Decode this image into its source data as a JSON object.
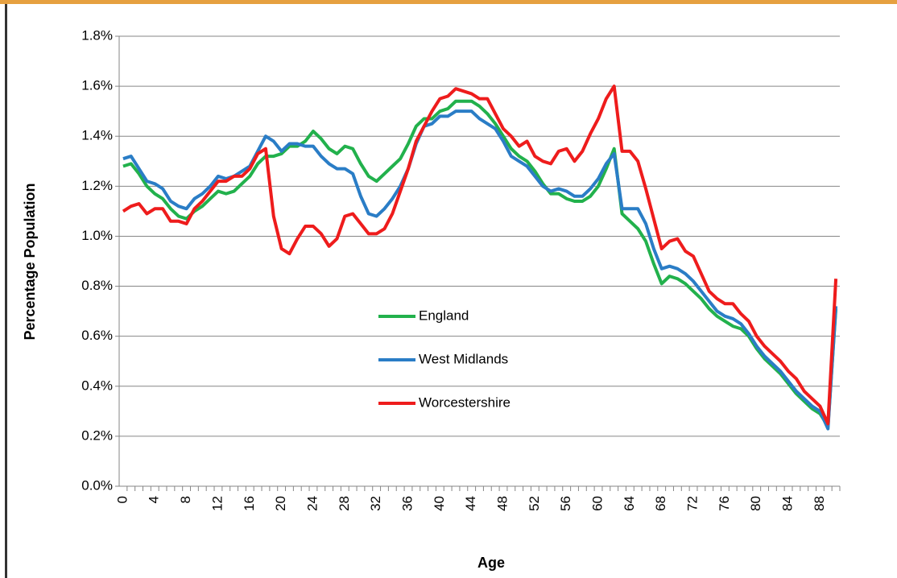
{
  "chart_data": {
    "type": "line",
    "x_label": "Age",
    "y_label": "Percentage Population",
    "categories": [
      "0",
      null,
      null,
      null,
      "4",
      null,
      null,
      null,
      "8",
      null,
      null,
      null,
      "12",
      null,
      null,
      null,
      "16",
      null,
      null,
      null,
      "20",
      null,
      null,
      null,
      "24",
      null,
      null,
      null,
      "28",
      null,
      null,
      null,
      "32",
      null,
      null,
      null,
      "36",
      null,
      null,
      null,
      "40",
      null,
      null,
      null,
      "44",
      null,
      null,
      null,
      "48",
      null,
      null,
      null,
      "52",
      null,
      null,
      null,
      "56",
      null,
      null,
      null,
      "60",
      null,
      null,
      null,
      "64",
      null,
      null,
      null,
      "68",
      null,
      null,
      null,
      "72",
      null,
      null,
      null,
      "76",
      null,
      null,
      null,
      "80",
      null,
      null,
      null,
      "84",
      null,
      null,
      null,
      "88",
      null,
      null
    ],
    "ylim": [
      0,
      1.8
    ],
    "yticks": [
      {
        "value": 0,
        "label": "0.0%"
      },
      {
        "value": 0.2,
        "label": "0.2%"
      },
      {
        "value": 0.4,
        "label": "0.4%"
      },
      {
        "value": 0.6,
        "label": "0.6%"
      },
      {
        "value": 0.8,
        "label": "0.8%"
      },
      {
        "value": 1.0,
        "label": "1.0%"
      },
      {
        "value": 1.2,
        "label": "1.2%"
      },
      {
        "value": 1.4,
        "label": "1.4%"
      },
      {
        "value": 1.6,
        "label": "1.6%"
      },
      {
        "value": 1.8,
        "label": "1.8%"
      }
    ],
    "grid": true,
    "legend": true,
    "series": [
      {
        "name": "England",
        "color": "#22b14c",
        "values": [
          1.28,
          1.29,
          1.25,
          1.2,
          1.17,
          1.15,
          1.11,
          1.08,
          1.07,
          1.1,
          1.12,
          1.15,
          1.18,
          1.17,
          1.18,
          1.21,
          1.24,
          1.29,
          1.32,
          1.32,
          1.33,
          1.36,
          1.36,
          1.38,
          1.42,
          1.39,
          1.35,
          1.33,
          1.36,
          1.35,
          1.29,
          1.24,
          1.22,
          1.25,
          1.28,
          1.31,
          1.37,
          1.44,
          1.47,
          1.47,
          1.5,
          1.51,
          1.54,
          1.54,
          1.54,
          1.52,
          1.49,
          1.45,
          1.4,
          1.35,
          1.32,
          1.3,
          1.26,
          1.21,
          1.17,
          1.17,
          1.15,
          1.14,
          1.14,
          1.16,
          1.2,
          1.27,
          1.35,
          1.09,
          1.06,
          1.03,
          0.98,
          0.89,
          0.81,
          0.84,
          0.83,
          0.81,
          0.78,
          0.75,
          0.71,
          0.68,
          0.66,
          0.64,
          0.63,
          0.6,
          0.55,
          0.51,
          0.48,
          0.45,
          0.41,
          0.37,
          0.34,
          0.31,
          0.29,
          0.24,
          0.71
        ]
      },
      {
        "name": "West Midlands",
        "color": "#2a7dc6",
        "values": [
          1.31,
          1.32,
          1.27,
          1.22,
          1.21,
          1.19,
          1.14,
          1.12,
          1.11,
          1.15,
          1.17,
          1.2,
          1.24,
          1.23,
          1.24,
          1.26,
          1.28,
          1.34,
          1.4,
          1.38,
          1.34,
          1.37,
          1.37,
          1.36,
          1.36,
          1.32,
          1.29,
          1.27,
          1.27,
          1.25,
          1.16,
          1.09,
          1.08,
          1.11,
          1.15,
          1.2,
          1.27,
          1.37,
          1.44,
          1.45,
          1.48,
          1.48,
          1.5,
          1.5,
          1.5,
          1.47,
          1.45,
          1.43,
          1.38,
          1.32,
          1.3,
          1.28,
          1.24,
          1.2,
          1.18,
          1.19,
          1.18,
          1.16,
          1.16,
          1.19,
          1.23,
          1.29,
          1.33,
          1.11,
          1.11,
          1.11,
          1.05,
          0.95,
          0.87,
          0.88,
          0.87,
          0.85,
          0.82,
          0.78,
          0.74,
          0.7,
          0.68,
          0.67,
          0.65,
          0.61,
          0.56,
          0.52,
          0.49,
          0.46,
          0.42,
          0.38,
          0.35,
          0.32,
          0.3,
          0.23,
          0.72
        ]
      },
      {
        "name": "Worcestershire",
        "color": "#ee1c1c",
        "values": [
          1.1,
          1.12,
          1.13,
          1.09,
          1.11,
          1.11,
          1.06,
          1.06,
          1.05,
          1.11,
          1.14,
          1.18,
          1.22,
          1.22,
          1.24,
          1.24,
          1.27,
          1.33,
          1.35,
          1.08,
          0.95,
          0.93,
          0.99,
          1.04,
          1.04,
          1.01,
          0.96,
          0.99,
          1.08,
          1.09,
          1.05,
          1.01,
          1.01,
          1.03,
          1.09,
          1.18,
          1.27,
          1.38,
          1.44,
          1.5,
          1.55,
          1.56,
          1.59,
          1.58,
          1.57,
          1.55,
          1.55,
          1.49,
          1.43,
          1.4,
          1.36,
          1.38,
          1.32,
          1.3,
          1.29,
          1.34,
          1.35,
          1.3,
          1.34,
          1.41,
          1.47,
          1.55,
          1.6,
          1.34,
          1.34,
          1.3,
          1.19,
          1.07,
          0.95,
          0.98,
          0.99,
          0.94,
          0.92,
          0.85,
          0.78,
          0.75,
          0.73,
          0.73,
          0.69,
          0.66,
          0.6,
          0.56,
          0.53,
          0.5,
          0.46,
          0.43,
          0.38,
          0.35,
          0.32,
          0.25,
          0.83
        ]
      }
    ]
  }
}
